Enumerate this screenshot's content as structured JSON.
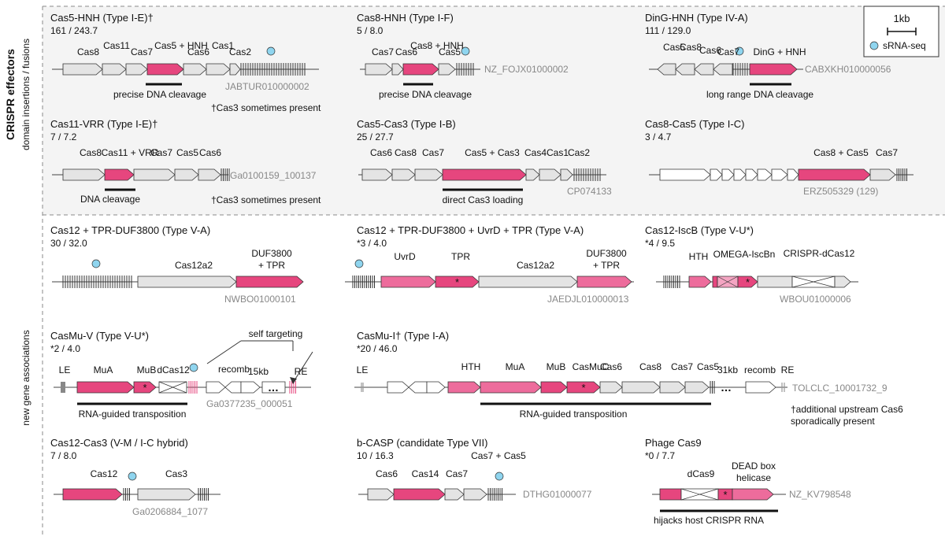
{
  "colors": {
    "magenta": "#e6467e",
    "pink": "#ed6c9c",
    "lightpink": "#f4a5c2",
    "gray": "#e4e4e4",
    "white": "#ffffff",
    "panel": "#f4f4f4",
    "sRNA": "#8fd5ef",
    "idgray": "#888888"
  },
  "sections": {
    "top_title": "CRISPR effectors",
    "top_sub": "domain insertions / fusions",
    "bottom_sub": "new gene associations"
  },
  "legend": {
    "scale": "1kb",
    "srna": "sRNA-seq"
  },
  "panels": [
    {
      "title": "Cas5-HNH (Type I-E)†",
      "stats": "161 / 243.7",
      "id": "JABTUR010000002",
      "genes": [
        "Cas8",
        "Cas11",
        "Cas7",
        "Cas5 + HNH",
        "Cas6",
        "Cas1",
        "Cas2"
      ],
      "feature": "precise DNA cleavage",
      "note": "†Cas3 sometimes present"
    },
    {
      "title": "Cas8-HNH (Type I-F)",
      "stats": "5 / 8.0",
      "id": "NZ_FOJX01000002",
      "genes": [
        "Cas7",
        "Cas6",
        "Cas8 + HNH",
        "Cas5"
      ],
      "feature": "precise DNA cleavage"
    },
    {
      "title": "DinG-HNH (Type IV-A)",
      "stats": "111 / 129.0",
      "id": "CABXKH010000056",
      "genes": [
        "Cas5",
        "Cas8",
        "Cas6",
        "Cas7",
        "DinG + HNH"
      ],
      "feature": "long range DNA cleavage"
    },
    {
      "title": "Cas11-VRR (Type I-E)†",
      "stats": "7 / 7.2",
      "id": "Ga0100159_100137",
      "genes": [
        "Cas8",
        "Cas11 + VRR",
        "Cas7",
        "Cas5",
        "Cas6"
      ],
      "feature": "DNA cleavage",
      "note": "†Cas3 sometimes present"
    },
    {
      "title": "Cas5-Cas3 (Type I-B)",
      "stats": "25 / 27.7",
      "id": "CP074133",
      "genes": [
        "Cas6",
        "Cas8",
        "Cas7",
        "Cas5 + Cas3",
        "Cas4",
        "Cas1",
        "Cas2"
      ],
      "feature": "direct Cas3 loading"
    },
    {
      "title": "Cas8-Cas5 (Type I-C)",
      "stats": "3 / 4.7",
      "id": "ERZ505329 (129)",
      "genes": [
        "Cas8 + Cas5",
        "Cas7"
      ]
    },
    {
      "title": "Cas12 + TPR-DUF3800 (Type V-A)",
      "stats": "30 / 32.0",
      "id": "NWBO01000101",
      "genes": [
        "Cas12a2",
        "DUF3800",
        "+ TPR"
      ]
    },
    {
      "title": "Cas12 + TPR-DUF3800 + UvrD + TPR (Type V-A)",
      "stats": "*3 / 4.0",
      "id": "JAEDJL010000013",
      "genes": [
        "UvrD",
        "TPR",
        "Cas12a2",
        "DUF3800",
        "+ TPR"
      ]
    },
    {
      "title": "Cas12-IscB (Type V-U*)",
      "stats": "*4 / 9.5",
      "id": "WBOU01000006",
      "genes": [
        "HTH",
        "OMEGA-IscBn",
        "CRISPR-dCas12"
      ]
    },
    {
      "title": "CasMu-V (Type V-U*)",
      "stats": "*2 / 4.0",
      "id": "Ga0377235_000051",
      "genes": [
        "LE",
        "MuA",
        "MuB",
        "dCas12",
        "recomb",
        "15kb",
        "RE"
      ],
      "feature": "RNA-guided transposition",
      "note": "self targeting"
    },
    {
      "title": "CasMu-I† (Type I-A)",
      "stats": "*20 / 46.0",
      "id": "TOLCLC_10001732_9",
      "genes": [
        "LE",
        "HTH",
        "MuA",
        "MuB",
        "CasMuC",
        "Cas6",
        "Cas8",
        "Cas7",
        "Cas5",
        "31kb",
        "recomb",
        "RE"
      ],
      "feature": "RNA-guided transposition",
      "note": "†additional upstream Cas6",
      "note2": "sporadically present"
    },
    {
      "title": "Cas12-Cas3 (V-M / I-C hybrid)",
      "stats": "7 / 8.0",
      "id": "Ga0206884_1077",
      "genes": [
        "Cas12",
        "Cas3"
      ]
    },
    {
      "title": "b-CASP (candidate Type VII)",
      "stats": "10 / 16.3",
      "id": "DTHG01000077",
      "genes": [
        "Cas6",
        "Cas14",
        "Cas7",
        "Cas7 + Cas5"
      ]
    },
    {
      "title": "Phage Cas9",
      "stats": "*0 / 7.7",
      "id": "NZ_KV798548",
      "genes": [
        "dCas9",
        "DEAD box",
        "helicase"
      ],
      "feature": "hijacks host CRISPR RNA"
    }
  ]
}
